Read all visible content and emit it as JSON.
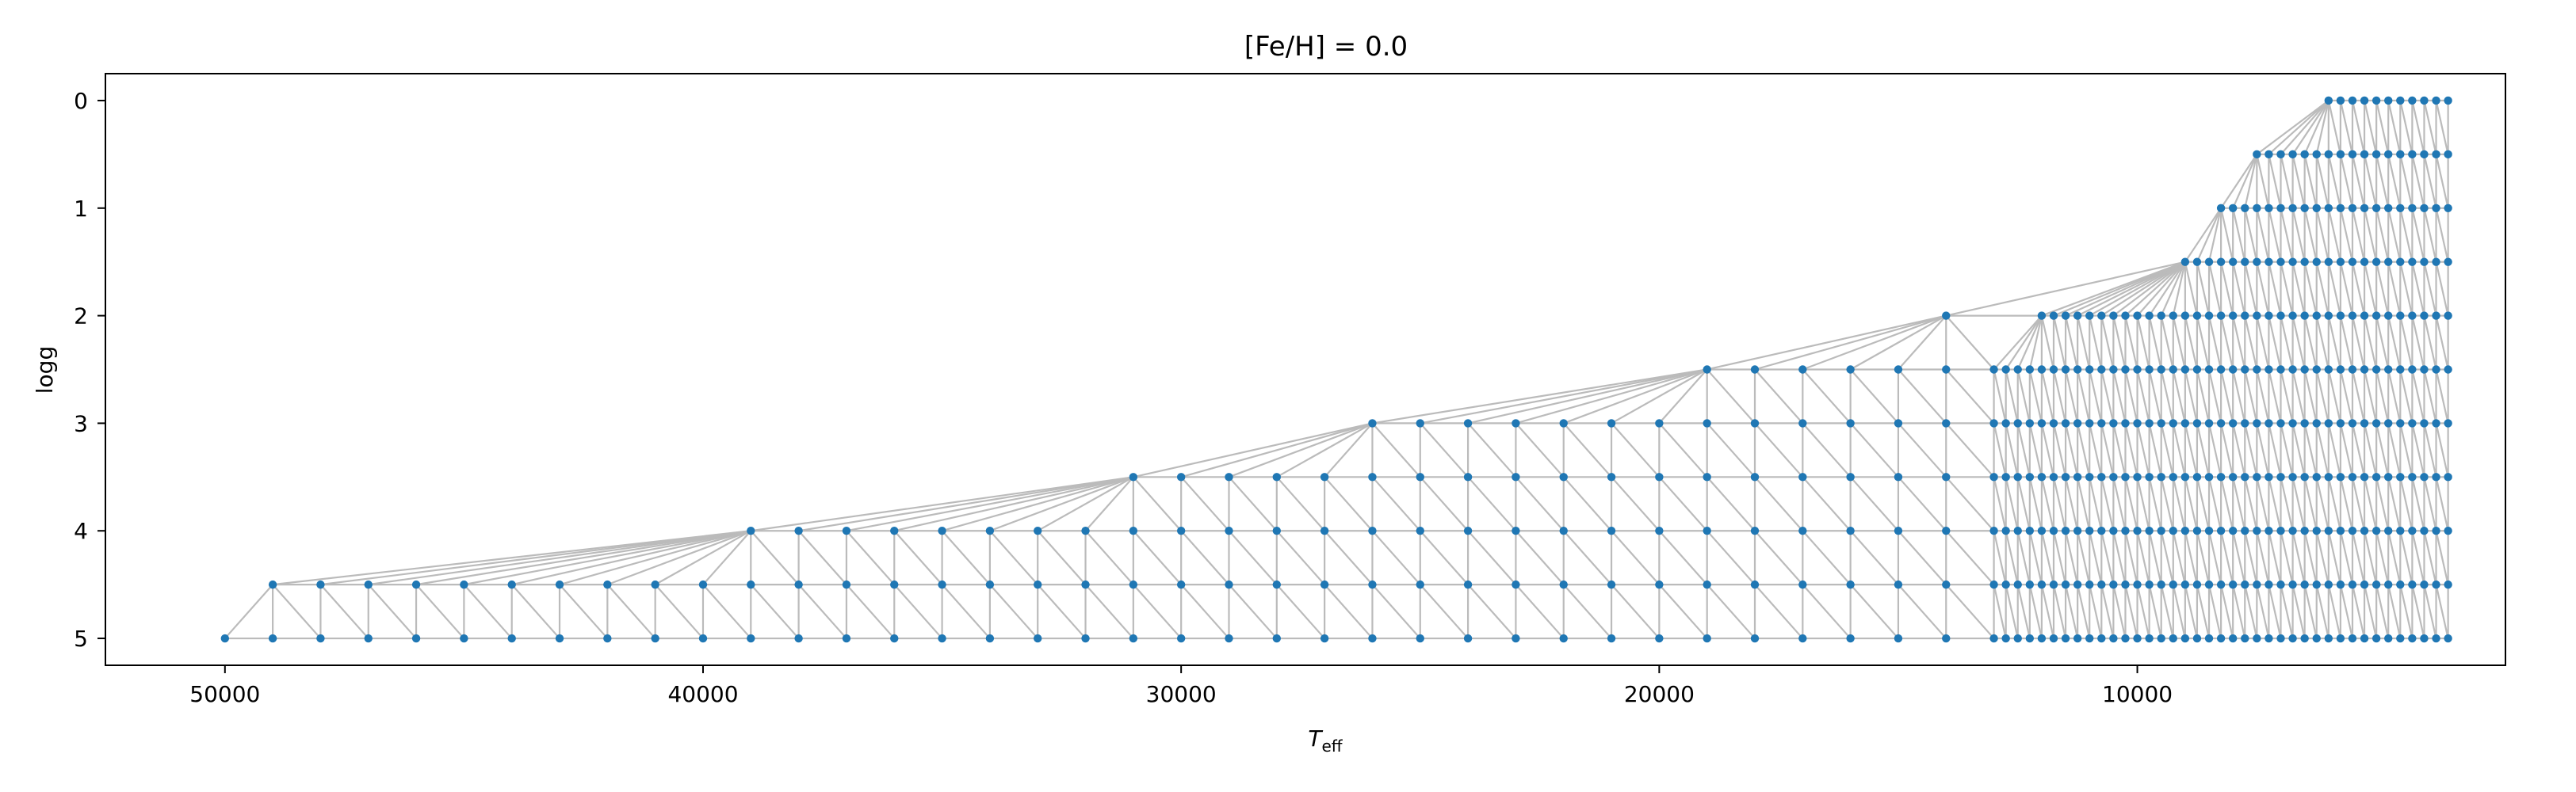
{
  "chart_data": {
    "type": "scatter",
    "title": "[Fe/H] = 0.0",
    "xlabel": {
      "main": "T",
      "sub": "eff"
    },
    "ylabel": "logg",
    "x_inverted": true,
    "y_inverted": true,
    "xlim": [
      52500,
      2300
    ],
    "ylim": [
      5.25,
      -0.25
    ],
    "xticks": [
      50000,
      40000,
      30000,
      20000,
      10000
    ],
    "yticks": [
      0,
      1,
      2,
      3,
      4,
      5
    ],
    "grid": false,
    "legend": "none",
    "point_color": "#1f77b4",
    "edge_color": "#bbbbbb",
    "series": [
      {
        "logg": 0.0,
        "x_min": 3500,
        "x_max": 6000,
        "x_step": 250
      },
      {
        "logg": 0.5,
        "x_min": 3500,
        "x_max": 7500,
        "x_step": 250
      },
      {
        "logg": 1.0,
        "x_min": 3500,
        "x_max": 8250,
        "x_step": 250
      },
      {
        "logg": 1.5,
        "x_min": 3500,
        "x_max": 9000,
        "x_step": 250
      },
      {
        "logg": 2.0,
        "x_min": 3500,
        "x_max": 12000,
        "x_step": 250,
        "extra": [
          14000
        ]
      },
      {
        "logg": 2.5,
        "x_min": 3500,
        "x_max": 13000,
        "x_step": 250,
        "extra": [
          14000,
          15000,
          16000,
          17000,
          18000,
          19000
        ]
      },
      {
        "logg": 3.0,
        "x_min": 3500,
        "x_max": 13000,
        "x_step": 250,
        "extra": [
          14000,
          15000,
          16000,
          17000,
          18000,
          19000,
          20000,
          21000,
          22000,
          23000,
          24000,
          25000,
          26000
        ]
      },
      {
        "logg": 3.5,
        "x_min": 3500,
        "x_max": 13000,
        "x_step": 250,
        "extra": [
          14000,
          15000,
          16000,
          17000,
          18000,
          19000,
          20000,
          21000,
          22000,
          23000,
          24000,
          25000,
          26000,
          27000,
          28000,
          29000,
          30000,
          31000
        ]
      },
      {
        "logg": 4.0,
        "x_min": 3500,
        "x_max": 13000,
        "x_step": 250,
        "extra": [
          14000,
          15000,
          16000,
          17000,
          18000,
          19000,
          20000,
          21000,
          22000,
          23000,
          24000,
          25000,
          26000,
          27000,
          28000,
          29000,
          30000,
          31000,
          32000,
          33000,
          34000,
          35000,
          36000,
          37000,
          38000,
          39000
        ]
      },
      {
        "logg": 4.5,
        "x_min": 3500,
        "x_max": 13000,
        "x_step": 250,
        "extra": [
          14000,
          15000,
          16000,
          17000,
          18000,
          19000,
          20000,
          21000,
          22000,
          23000,
          24000,
          25000,
          26000,
          27000,
          28000,
          29000,
          30000,
          31000,
          32000,
          33000,
          34000,
          35000,
          36000,
          37000,
          38000,
          39000,
          40000,
          41000,
          42000,
          43000,
          44000,
          45000,
          46000,
          47000,
          48000,
          49000
        ]
      },
      {
        "logg": 5.0,
        "x_min": 3500,
        "x_max": 13000,
        "x_step": 250,
        "extra": [
          14000,
          15000,
          16000,
          17000,
          18000,
          19000,
          20000,
          21000,
          22000,
          23000,
          24000,
          25000,
          26000,
          27000,
          28000,
          29000,
          30000,
          31000,
          32000,
          33000,
          34000,
          35000,
          36000,
          37000,
          38000,
          39000,
          40000,
          41000,
          42000,
          43000,
          44000,
          45000,
          46000,
          47000,
          48000,
          49000,
          50000
        ]
      }
    ]
  }
}
